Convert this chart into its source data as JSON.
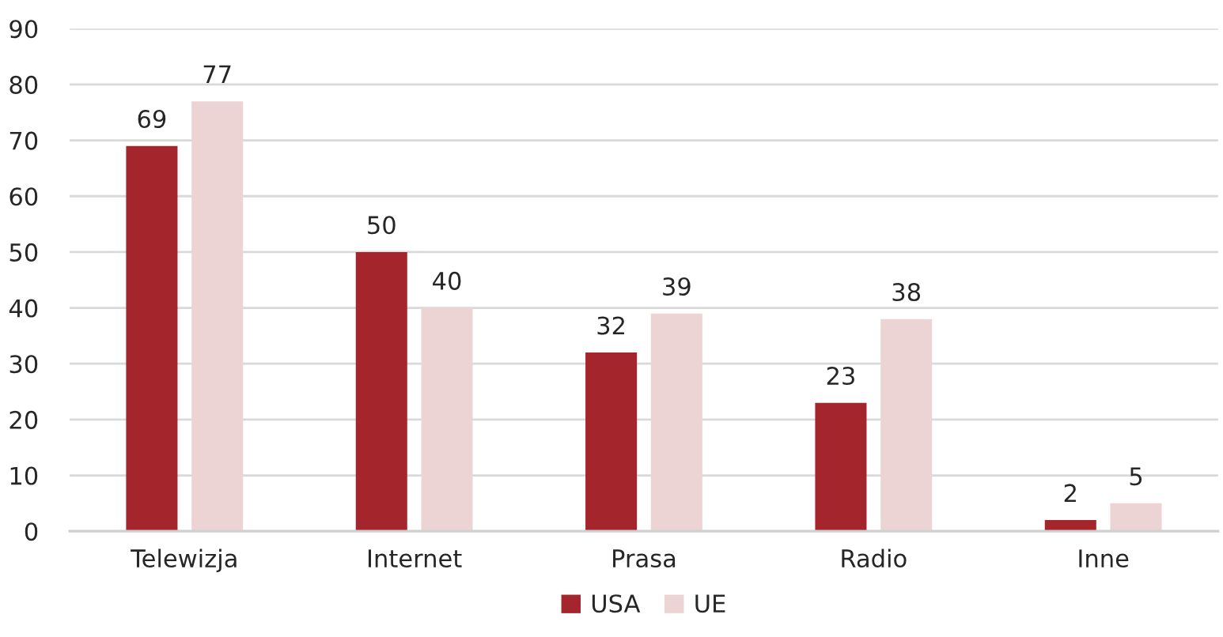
{
  "chart_data": {
    "type": "bar",
    "categories": [
      "Telewizja",
      "Internet",
      "Prasa",
      "Radio",
      "Inne"
    ],
    "series": [
      {
        "name": "USA",
        "color": "#a4262c",
        "values": [
          69,
          50,
          32,
          23,
          2
        ]
      },
      {
        "name": "UE",
        "color": "#ecd4d5",
        "values": [
          77,
          40,
          39,
          38,
          5
        ]
      }
    ],
    "ylim": [
      0,
      90
    ],
    "yticks": [
      0,
      10,
      20,
      30,
      40,
      50,
      60,
      70,
      80,
      90
    ],
    "grid": "y",
    "legend": "bottom",
    "data_labels": true
  }
}
